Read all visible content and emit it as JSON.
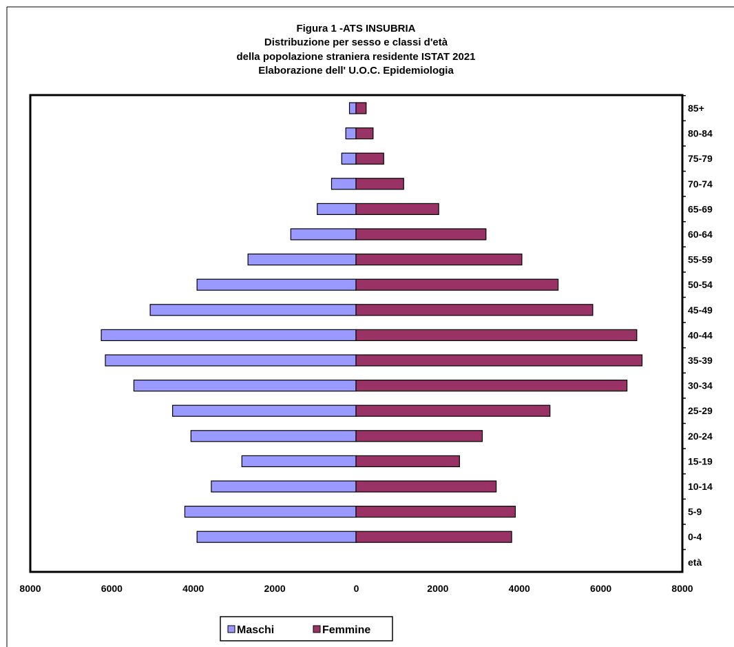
{
  "chart_data": {
    "type": "bar",
    "orientation": "horizontal",
    "title": [
      "Figura 1 -ATS INSUBRIA",
      "Distribuzione per sesso e classi d'età",
      "della popolazione straniera residente ISTAT 2021",
      "Elaborazione dell' U.O.C. Epidemiologia"
    ],
    "categories": [
      "85+",
      "80-84",
      "75-79",
      "70-74",
      "65-69",
      "60-64",
      "55-59",
      "50-54",
      "45-49",
      "40-44",
      "35-39",
      "30-34",
      "25-29",
      "20-24",
      "15-19",
      "10-14",
      "5-9",
      "0-4",
      "età"
    ],
    "series": [
      {
        "name": "Maschi",
        "color": "#9999FF",
        "values": [
          160,
          250,
          350,
          600,
          950,
          1600,
          2650,
          3900,
          5050,
          6250,
          6150,
          5450,
          4500,
          4050,
          2800,
          3550,
          4200,
          3900,
          null
        ]
      },
      {
        "name": "Femmine",
        "color": "#993366",
        "values": [
          250,
          420,
          680,
          1170,
          2030,
          3190,
          4070,
          4960,
          5810,
          6890,
          7020,
          6650,
          4760,
          3100,
          2540,
          3440,
          3910,
          3820,
          null
        ]
      }
    ],
    "xlim": [
      -8000,
      8000
    ],
    "x_ticks": [
      "8000",
      "6000",
      "4000",
      "2000",
      "0",
      "2000",
      "4000",
      "6000",
      "8000"
    ],
    "grid": false,
    "legend_position": "bottom"
  }
}
